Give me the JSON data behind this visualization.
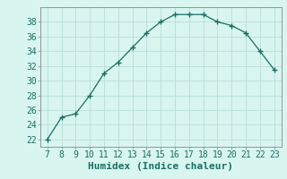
{
  "x": [
    7,
    8,
    9,
    10,
    11,
    12,
    13,
    14,
    15,
    16,
    17,
    18,
    19,
    20,
    21,
    22,
    23
  ],
  "y": [
    22,
    25,
    25.5,
    28,
    31,
    32.5,
    34.5,
    36.5,
    38,
    39,
    39,
    39,
    38,
    37.5,
    36.5,
    34,
    31.5
  ],
  "xlabel": "Humidex (Indice chaleur)",
  "xlim": [
    6.5,
    23.5
  ],
  "ylim": [
    21,
    40
  ],
  "yticks": [
    22,
    24,
    26,
    28,
    30,
    32,
    34,
    36,
    38
  ],
  "xticks": [
    7,
    8,
    9,
    10,
    11,
    12,
    13,
    14,
    15,
    16,
    17,
    18,
    19,
    20,
    21,
    22,
    23
  ],
  "line_color": "#1a6e62",
  "marker": "+",
  "bg_color": "#d8f5f0",
  "grid_color": "#b8ddd8",
  "spine_color": "#888888",
  "tick_color": "#1a6e62",
  "xlabel_fontsize": 8,
  "tick_fontsize": 7
}
